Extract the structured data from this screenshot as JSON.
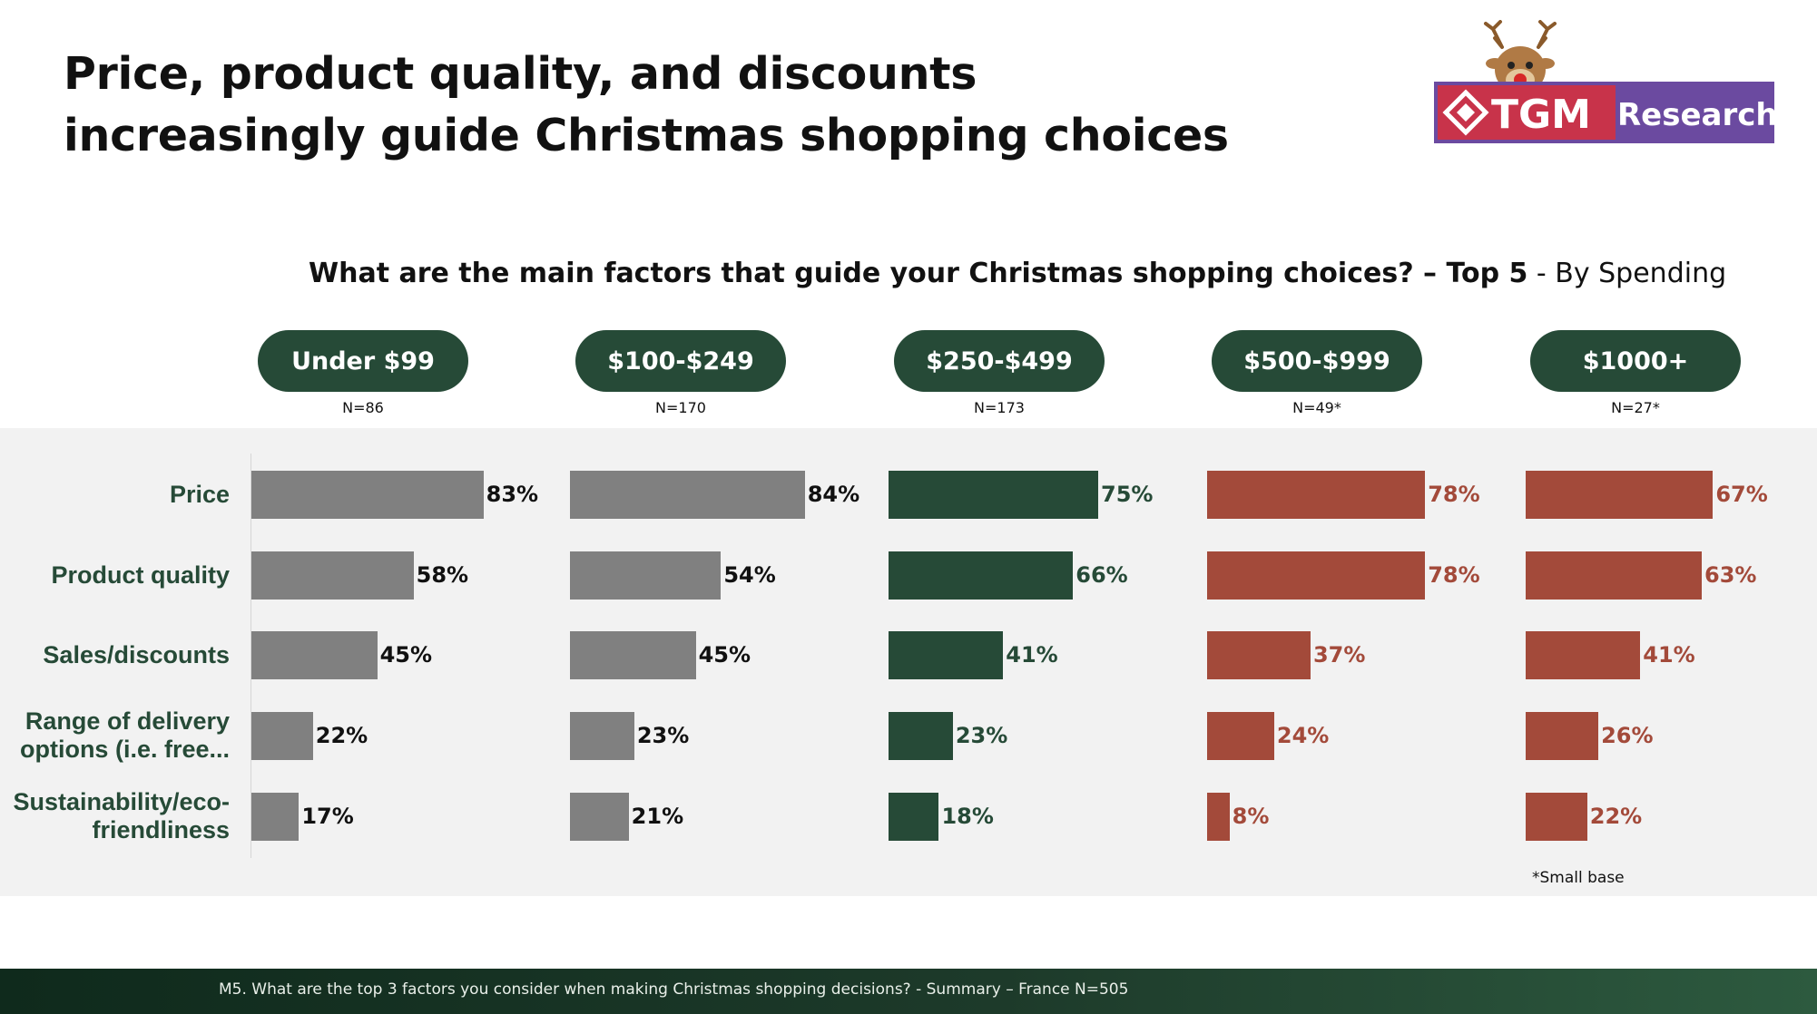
{
  "title": {
    "line1": "Price, product quality, and discounts",
    "line2": "increasingly guide Christmas shopping choices"
  },
  "logo": {
    "text_main": "TGM",
    "text_sub": "Research",
    "mascot": "reindeer-icon"
  },
  "question": {
    "main": "What are the main factors that guide your Christmas shopping choices? – Top 5",
    "sub": " - By Spending"
  },
  "small_base_note": "*Small base",
  "footer": "M5. What are the top 3 factors you consider when making Christmas shopping decisions? - Summary – France N=505",
  "colors": {
    "gray": "#808080",
    "green": "#264a37",
    "red": "#a34a3a",
    "pill": "#264a37",
    "category_text": "#264a37"
  },
  "chart_data": {
    "type": "bar",
    "orientation": "horizontal",
    "categories": [
      "Price",
      "Product quality",
      "Sales/discounts",
      "Range of delivery options (i.e. free...",
      "Sustainability/eco-friendliness"
    ],
    "category_lines": [
      [
        "Price"
      ],
      [
        "Product quality"
      ],
      [
        "Sales/discounts"
      ],
      [
        "Range of delivery",
        "options (i.e. free..."
      ],
      [
        "Sustainability/eco-",
        "friendliness"
      ]
    ],
    "unit": "%",
    "xlim": [
      0,
      100
    ],
    "series": [
      {
        "name": "Under $99",
        "n": "N=86",
        "color": "gray",
        "values": [
          83,
          58,
          45,
          22,
          17
        ],
        "labels": [
          "83%",
          "58%",
          "45%",
          "22%",
          "17%"
        ]
      },
      {
        "name": "$100-$249",
        "n": "N=170",
        "color": "gray",
        "values": [
          84,
          54,
          45,
          23,
          21
        ],
        "labels": [
          "84%",
          "54%",
          "45%",
          "23%",
          "21%"
        ]
      },
      {
        "name": "$250-$499",
        "n": "N=173",
        "color": "green",
        "values": [
          75,
          66,
          41,
          23,
          18
        ],
        "labels": [
          "75%",
          "66%",
          "41%",
          "23%",
          "18%"
        ]
      },
      {
        "name": "$500-$999",
        "n": "N=49*",
        "color": "red",
        "values": [
          78,
          78,
          37,
          24,
          8
        ],
        "labels": [
          "78%",
          "78%",
          "37%",
          "24%",
          "8%"
        ]
      },
      {
        "name": "$1000+",
        "n": "N=27*",
        "color": "red",
        "values": [
          67,
          63,
          41,
          26,
          22
        ],
        "labels": [
          "67%",
          "63%",
          "41%",
          "26%",
          "22%"
        ]
      }
    ]
  }
}
